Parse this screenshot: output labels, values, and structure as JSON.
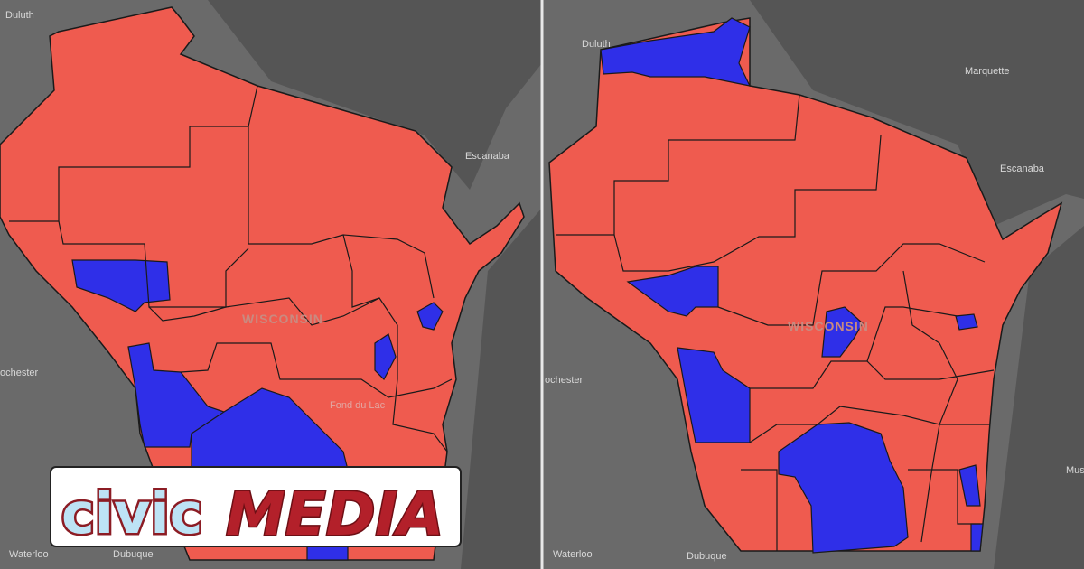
{
  "left_map": {
    "labels": [
      "Duluth",
      "Escanaba",
      "ochester",
      "Waterloo",
      "Dubuque",
      "WISCONSIN",
      "Fond du Lac"
    ]
  },
  "right_map": {
    "labels": [
      "Duluth",
      "Marquette",
      "Escanaba",
      "ochester",
      "Waterloo",
      "Dubuque",
      "WISCONSIN",
      "Mus"
    ]
  },
  "logo": {
    "part1": "civic",
    "part2": "MEDIA"
  }
}
